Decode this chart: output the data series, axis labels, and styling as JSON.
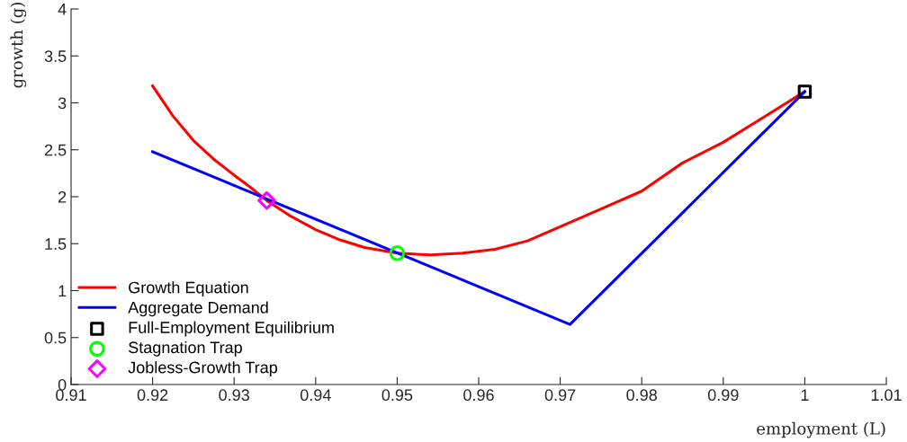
{
  "chart_data": {
    "type": "line",
    "xlabel": "employment (L)",
    "ylabel": "growth (g)",
    "xlim": [
      0.91,
      1.01
    ],
    "xticks": [
      0.91,
      0.92,
      0.93,
      0.94,
      0.95,
      0.96,
      0.97,
      0.98,
      0.99,
      1,
      1.01
    ],
    "ylim": [
      0,
      4
    ],
    "yticks": [
      0,
      0.5,
      1,
      1.5,
      2,
      2.5,
      3,
      3.5,
      4
    ],
    "grid": false,
    "legend": "bottom left",
    "series": [
      {
        "name": "Growth Equation",
        "color": "#ff0000",
        "x": [
          0.92,
          0.9225,
          0.925,
          0.9275,
          0.93,
          0.932,
          0.934,
          0.937,
          0.94,
          0.943,
          0.946,
          0.95,
          0.954,
          0.958,
          0.962,
          0.966,
          0.9705,
          0.975,
          0.98,
          0.985,
          0.99,
          0.995,
          1.0
        ],
        "values": [
          3.18,
          2.86,
          2.6,
          2.4,
          2.23,
          2.1,
          1.96,
          1.79,
          1.65,
          1.54,
          1.46,
          1.4,
          1.38,
          1.4,
          1.44,
          1.53,
          1.7,
          1.87,
          2.06,
          2.36,
          2.58,
          2.85,
          3.12
        ]
      },
      {
        "name": "Aggregate Demand",
        "color": "#0000ff",
        "x": [
          0.92,
          0.9712,
          1.0
        ],
        "values": [
          2.48,
          0.64,
          3.12
        ]
      },
      {
        "name": "Full-Employment Equilibrium",
        "type": "scatter",
        "marker": "square",
        "color": "#000000",
        "x": [
          1.0
        ],
        "values": [
          3.12
        ]
      },
      {
        "name": "Stagnation Trap",
        "type": "scatter",
        "marker": "circle",
        "color": "#00ff00",
        "x": [
          0.95
        ],
        "values": [
          1.4
        ]
      },
      {
        "name": "Jobless-Growth Trap",
        "type": "scatter",
        "marker": "diamond",
        "color": "#ff00ff",
        "x": [
          0.934
        ],
        "values": [
          1.96
        ]
      }
    ]
  }
}
